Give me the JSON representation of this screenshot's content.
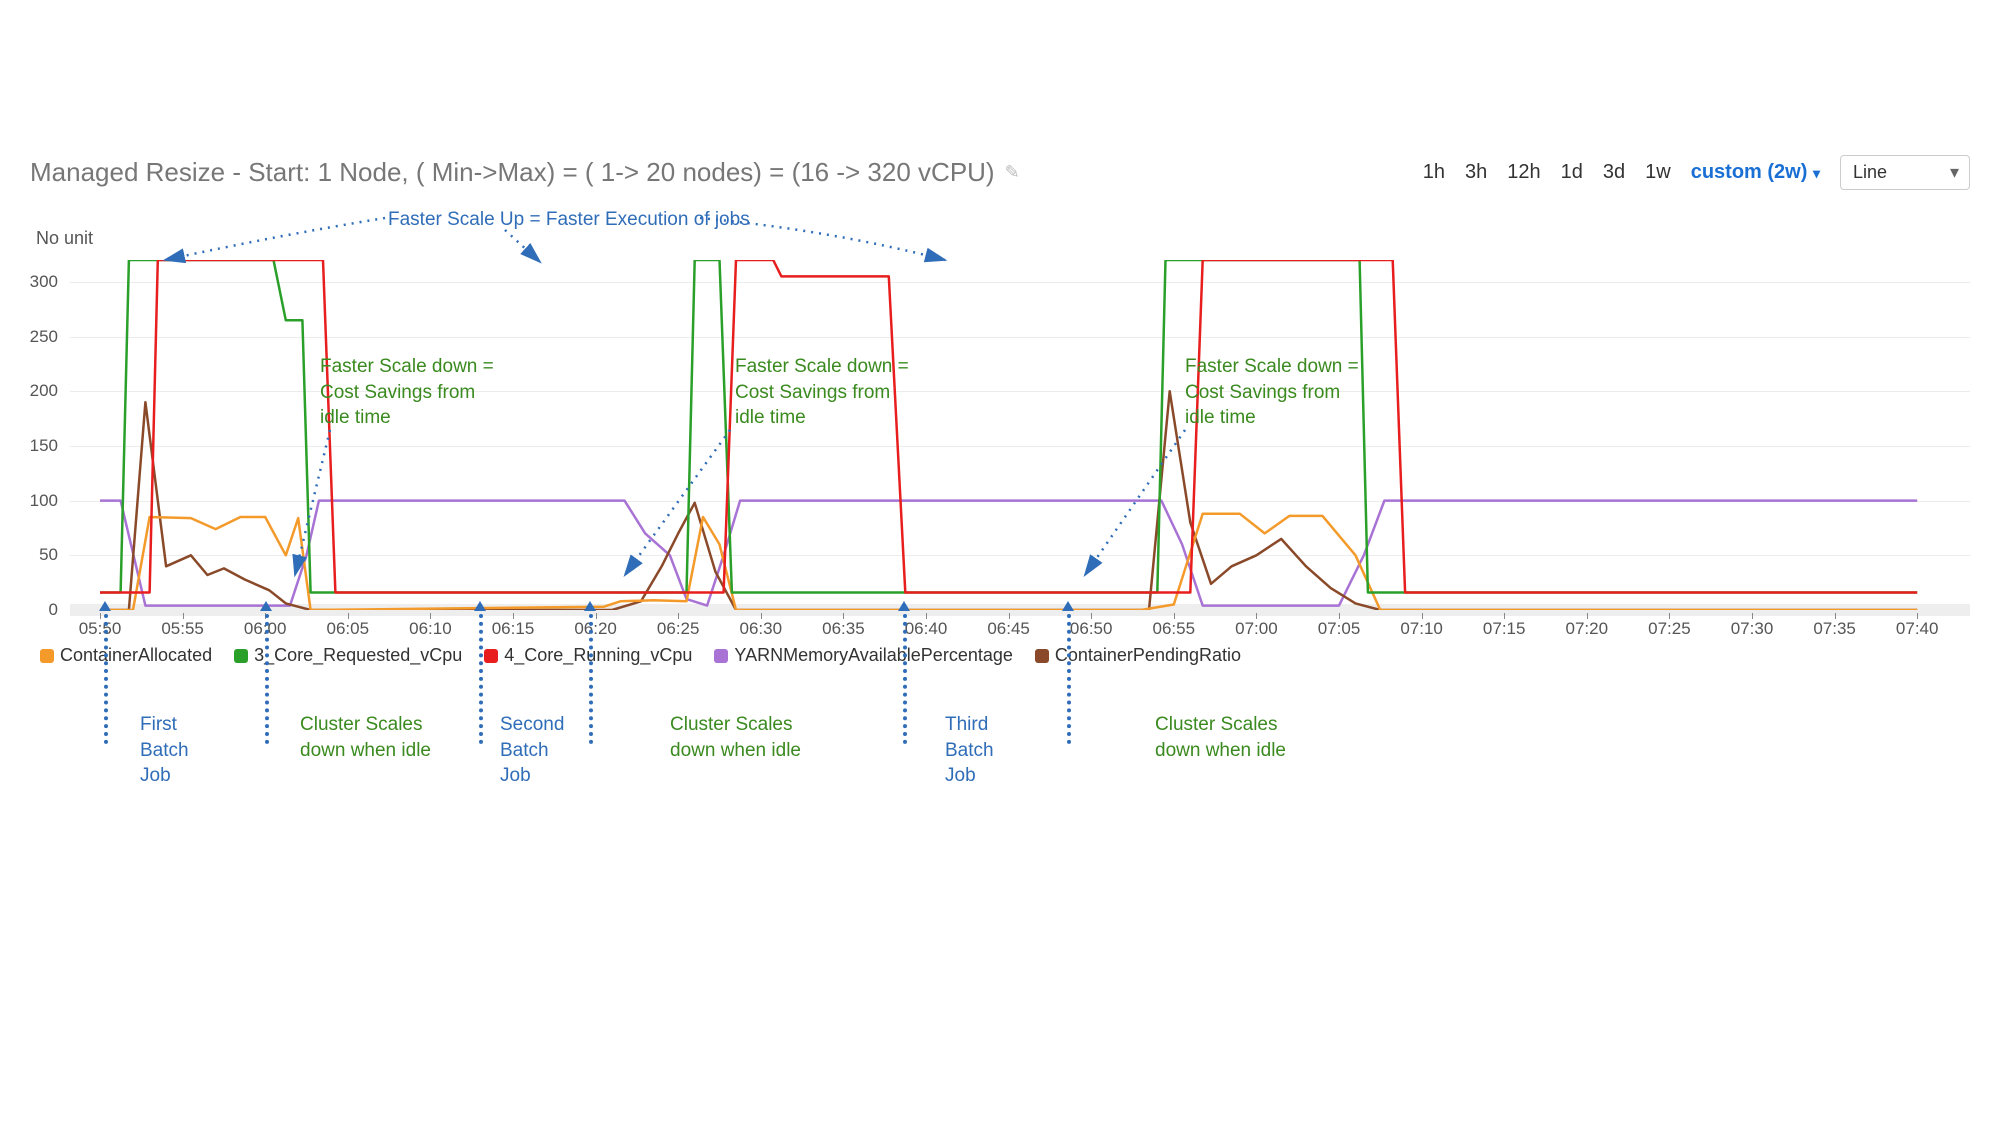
{
  "title": "Managed Resize - Start: 1 Node, ( Min->Max) = ( 1-> 20 nodes) = (16 -> 320 vCPU)",
  "ylabel": "No unit",
  "timeRange": {
    "options": [
      "1h",
      "3h",
      "12h",
      "1d",
      "3d",
      "1w"
    ],
    "custom": "custom (2w)"
  },
  "chartTypeSelect": "Line",
  "yAxis": {
    "min": 0,
    "max": 320,
    "ticks": [
      0,
      50,
      100,
      150,
      200,
      250,
      300
    ]
  },
  "xAxis": {
    "labels": [
      "05:50",
      "05:55",
      "06:00",
      "06:05",
      "06:10",
      "06:15",
      "06:20",
      "06:25",
      "06:30",
      "06:35",
      "06:40",
      "06:45",
      "06:50",
      "06:55",
      "07:00",
      "07:05",
      "07:10",
      "07:15",
      "07:20",
      "07:25",
      "07:30",
      "07:35",
      "07:40"
    ]
  },
  "chart": {
    "plotWidthPx": 1900,
    "plotHeightPx": 350,
    "xStepPx": 82.6,
    "background": "#ffffff",
    "gridColor": "#ececec",
    "lineWidth": 2.5
  },
  "series": {
    "containerAllocated": {
      "label": "ContainerAllocated",
      "color": "#f39a2a",
      "points": [
        [
          0,
          0
        ],
        [
          0.4,
          0
        ],
        [
          0.6,
          85
        ],
        [
          1.1,
          84
        ],
        [
          1.4,
          74
        ],
        [
          1.7,
          85
        ],
        [
          2.0,
          85
        ],
        [
          2.25,
          50
        ],
        [
          2.4,
          84
        ],
        [
          2.55,
          0
        ],
        [
          6.1,
          3
        ],
        [
          6.3,
          8
        ],
        [
          6.7,
          9
        ],
        [
          7.1,
          8
        ],
        [
          7.3,
          85
        ],
        [
          7.5,
          60
        ],
        [
          7.7,
          0
        ],
        [
          12.6,
          0
        ],
        [
          13.0,
          5
        ],
        [
          13.35,
          88
        ],
        [
          13.8,
          88
        ],
        [
          14.1,
          70
        ],
        [
          14.4,
          86
        ],
        [
          14.8,
          86
        ],
        [
          15.2,
          50
        ],
        [
          15.5,
          0
        ],
        [
          22,
          0
        ]
      ]
    },
    "coreRequested": {
      "label": "3_Core_Requested_vCpu",
      "color": "#2aa02a",
      "points": [
        [
          0,
          16
        ],
        [
          0.25,
          16
        ],
        [
          0.35,
          320
        ],
        [
          2.1,
          320
        ],
        [
          2.25,
          265
        ],
        [
          2.45,
          265
        ],
        [
          2.55,
          16
        ],
        [
          7.1,
          16
        ],
        [
          7.2,
          320
        ],
        [
          7.5,
          320
        ],
        [
          7.65,
          16
        ],
        [
          12.8,
          16
        ],
        [
          12.9,
          320
        ],
        [
          15.25,
          320
        ],
        [
          15.35,
          16
        ],
        [
          22,
          16
        ]
      ]
    },
    "coreRunning": {
      "label": "4_Core_Running_vCpu",
      "color": "#e81e1e",
      "points": [
        [
          0,
          16
        ],
        [
          0.6,
          16
        ],
        [
          0.7,
          320
        ],
        [
          2.7,
          320
        ],
        [
          2.85,
          16
        ],
        [
          7.55,
          16
        ],
        [
          7.7,
          320
        ],
        [
          8.15,
          320
        ],
        [
          8.25,
          305
        ],
        [
          9.55,
          305
        ],
        [
          9.75,
          16
        ],
        [
          13.2,
          16
        ],
        [
          13.35,
          320
        ],
        [
          15.65,
          320
        ],
        [
          15.8,
          16
        ],
        [
          22,
          16
        ]
      ]
    },
    "yarnMem": {
      "label": "YARNMemoryAvailablePercentage",
      "color": "#a873d4",
      "points": [
        [
          0,
          100
        ],
        [
          0.25,
          100
        ],
        [
          0.55,
          4
        ],
        [
          2.3,
          4
        ],
        [
          2.5,
          50
        ],
        [
          2.65,
          100
        ],
        [
          6.35,
          100
        ],
        [
          6.6,
          70
        ],
        [
          6.9,
          50
        ],
        [
          7.1,
          10
        ],
        [
          7.35,
          4
        ],
        [
          7.55,
          50
        ],
        [
          7.75,
          100
        ],
        [
          12.85,
          100
        ],
        [
          13.1,
          60
        ],
        [
          13.35,
          4
        ],
        [
          15.0,
          4
        ],
        [
          15.3,
          50
        ],
        [
          15.55,
          100
        ],
        [
          22,
          100
        ]
      ]
    },
    "containerPending": {
      "label": "ContainerPendingRatio",
      "color": "#8a4a2a",
      "points": [
        [
          0,
          0
        ],
        [
          0.35,
          0
        ],
        [
          0.55,
          190
        ],
        [
          0.8,
          40
        ],
        [
          1.1,
          50
        ],
        [
          1.3,
          32
        ],
        [
          1.5,
          38
        ],
        [
          1.75,
          28
        ],
        [
          2.05,
          18
        ],
        [
          2.25,
          6
        ],
        [
          2.55,
          0
        ],
        [
          6.2,
          0
        ],
        [
          6.55,
          8
        ],
        [
          6.8,
          40
        ],
        [
          7.0,
          70
        ],
        [
          7.2,
          98
        ],
        [
          7.45,
          35
        ],
        [
          7.7,
          0
        ],
        [
          12.7,
          0
        ],
        [
          12.95,
          200
        ],
        [
          13.2,
          80
        ],
        [
          13.45,
          24
        ],
        [
          13.7,
          40
        ],
        [
          14.0,
          50
        ],
        [
          14.3,
          65
        ],
        [
          14.6,
          40
        ],
        [
          14.9,
          20
        ],
        [
          15.2,
          6
        ],
        [
          15.5,
          0
        ],
        [
          22,
          0
        ]
      ]
    }
  },
  "legendOrder": [
    "containerAllocated",
    "coreRequested",
    "coreRunning",
    "yarnMem",
    "containerPending"
  ],
  "annotations": {
    "topCallout": "Faster Scale Up =  Faster Execution of jobs",
    "scaleDown": "Faster Scale down =\nCost Savings from\nidle time",
    "firstBatch": "First\nBatch\nJob",
    "secondBatch": "Second\nBatch\nJob",
    "thirdBatch": "Third\nBatch\nJob",
    "clusterIdle": "Cluster Scales\ndown when idle"
  },
  "colors": {
    "blueAnnot": "#2f6db8",
    "greenAnnot": "#3a8a1f",
    "titleGray": "#777777",
    "axisText": "#555555"
  }
}
